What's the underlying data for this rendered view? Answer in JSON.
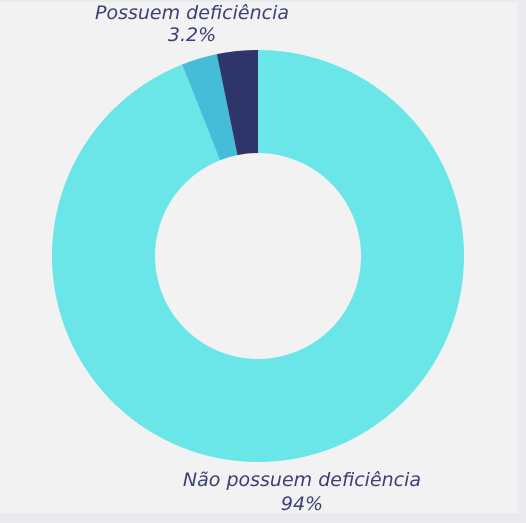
{
  "chart_data": {
    "type": "pie",
    "variant": "donut",
    "title": "",
    "slices": [
      {
        "label": "Não possuem deficiência",
        "value": 94,
        "value_label": "94%",
        "color": "#6ae6e8"
      },
      {
        "label": "",
        "value": 2.8,
        "value_label": "",
        "color": "#45bcd8"
      },
      {
        "label": "Possuem deficiência",
        "value": 3.2,
        "value_label": "3.2%",
        "color": "#2e356b"
      }
    ],
    "colors": {
      "background": "#f2f2f2",
      "label_text": "#3b3f74"
    },
    "legend": "none"
  }
}
